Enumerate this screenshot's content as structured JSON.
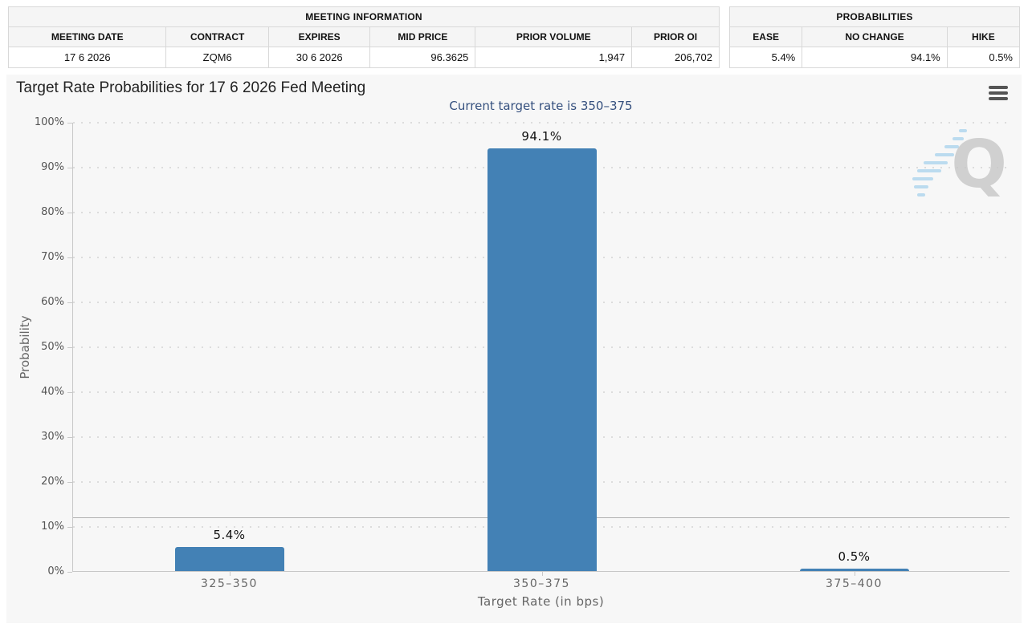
{
  "meeting_information": {
    "title": "MEETING INFORMATION",
    "columns": [
      "MEETING DATE",
      "CONTRACT",
      "EXPIRES",
      "MID PRICE",
      "PRIOR VOLUME",
      "PRIOR OI"
    ],
    "values": [
      "17 6 2026",
      "ZQM6",
      "30 6 2026",
      "96.3625",
      "1,947",
      "206,702"
    ]
  },
  "probabilities_summary": {
    "title": "PROBABILITIES",
    "columns": [
      "EASE",
      "NO CHANGE",
      "HIKE"
    ],
    "values": [
      "5.4%",
      "94.1%",
      "0.5%"
    ]
  },
  "chart": {
    "title": "Target Rate Probabilities for 17 6 2026 Fed Meeting",
    "subtitle": "Current target rate is 350–375",
    "y_axis_title": "Probability",
    "x_axis_title": "Target Rate (in bps)",
    "menu_icon": "hamburger-menu-icon",
    "watermark_letter": "Q"
  },
  "chart_data": {
    "type": "bar",
    "categories": [
      "325–350",
      "350–375",
      "375–400"
    ],
    "values": [
      5.4,
      94.1,
      0.5
    ],
    "value_labels": [
      "5.4%",
      "94.1%",
      "0.5%"
    ],
    "title": "Target Rate Probabilities for 17 6 2026 Fed Meeting",
    "subtitle": "Current target rate is 350–375",
    "xlabel": "Target Rate (in bps)",
    "ylabel": "Probability",
    "ylim": [
      0,
      100
    ],
    "ytick_step": 10,
    "ytick_suffix": "%",
    "grid": "dotted-horizontal",
    "legend": "none",
    "reference_line_y": 12.1,
    "bar_color": "#4381b5",
    "subtitle_color": "#35507e"
  }
}
